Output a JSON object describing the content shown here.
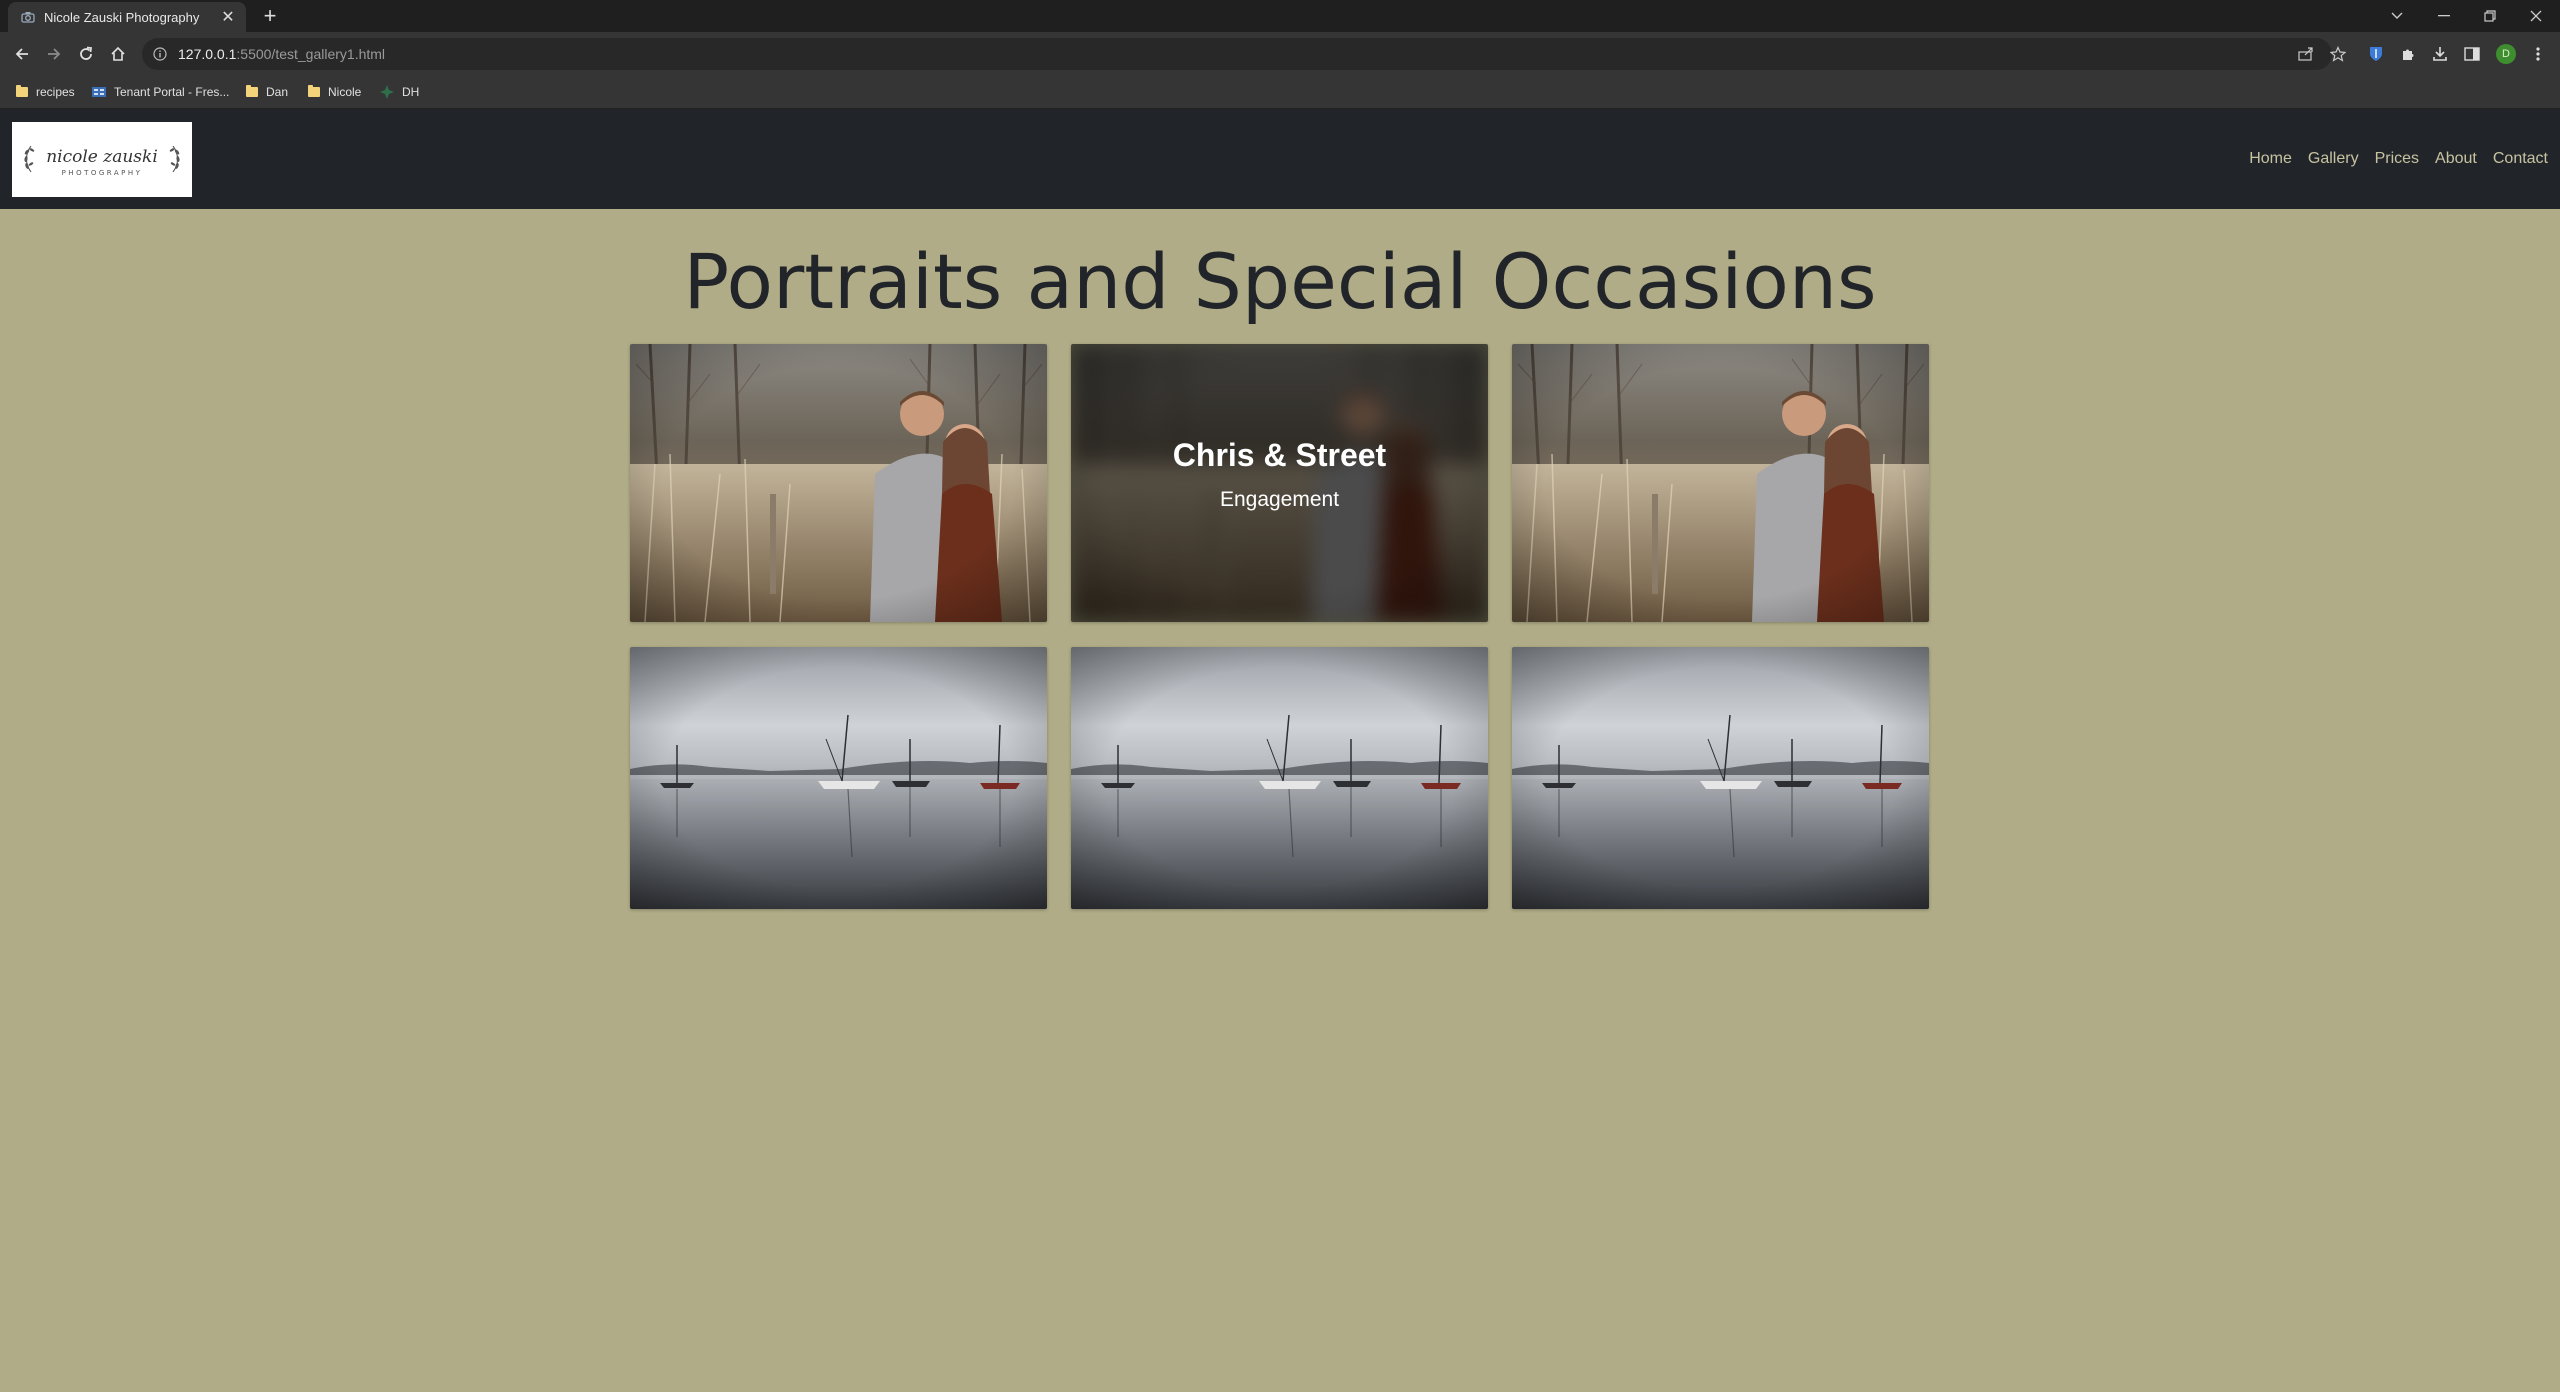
{
  "browser": {
    "tab_title": "Nicole Zauski Photography",
    "url_host": "127.0.0.1",
    "url_rest": ":5500/test_gallery1.html",
    "profile_initial": "D",
    "bookmarks": [
      {
        "label": "recipes",
        "icon": "folder-icon"
      },
      {
        "label": "Tenant Portal - Fres...",
        "icon": "tenant-portal-icon"
      },
      {
        "label": "Dan",
        "icon": "folder-icon"
      },
      {
        "label": "Nicole",
        "icon": "folder-icon"
      },
      {
        "label": "DH",
        "icon": "dh-icon"
      }
    ]
  },
  "site": {
    "logo_line1": "nicole zauski",
    "logo_line2": "PHOTOGRAPHY",
    "nav": [
      "Home",
      "Gallery",
      "Prices",
      "About",
      "Contact"
    ],
    "heading": "Portraits and Special Occasions",
    "gallery": [
      {
        "photo": "engagement-couple",
        "overlay": false
      },
      {
        "photo": "engagement-couple",
        "overlay": true,
        "name": "Chris & Street",
        "type": "Engagement"
      },
      {
        "photo": "engagement-couple",
        "overlay": false
      },
      {
        "photo": "foggy-lake-sailboats",
        "overlay": false
      },
      {
        "photo": "foggy-lake-sailboats",
        "overlay": false
      },
      {
        "photo": "foggy-lake-sailboats",
        "overlay": false
      }
    ]
  },
  "colors": {
    "page_background": "#b0ac87",
    "navbar_background": "#212529",
    "nav_link": "#c7c2a2",
    "heading_text": "#212529"
  }
}
